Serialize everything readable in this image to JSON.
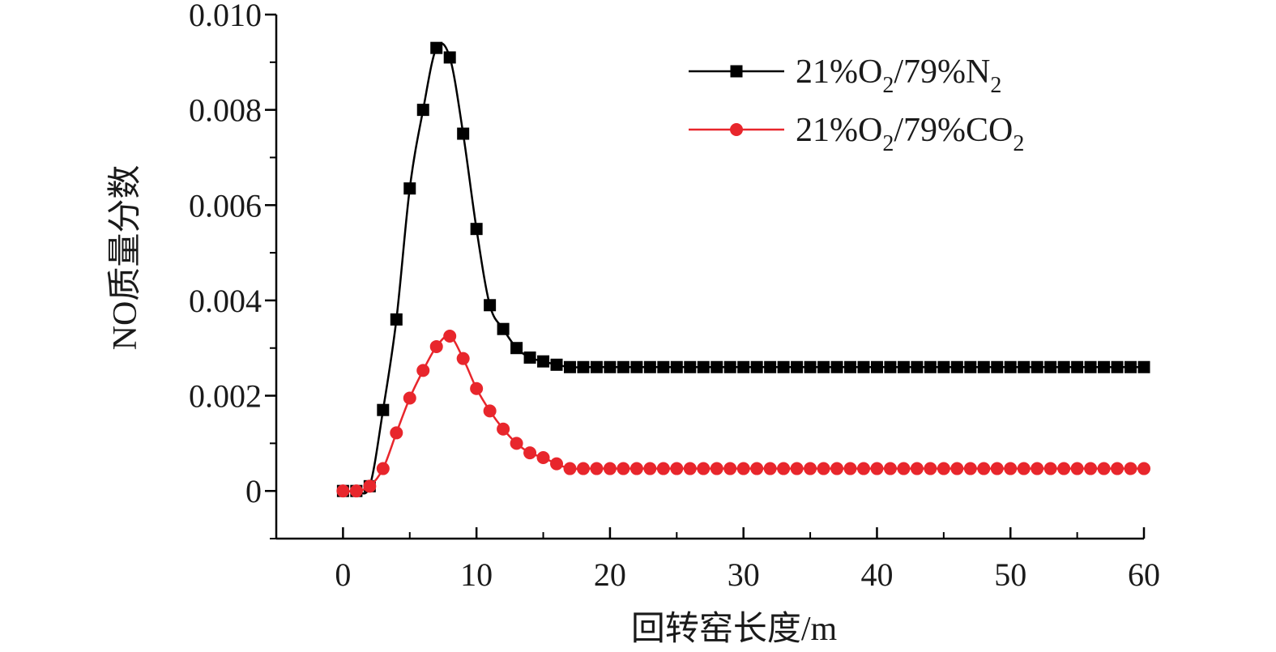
{
  "chart_data": {
    "type": "line",
    "title": "",
    "xlabel": "回转窑长度/m",
    "ylabel": "NO质量分数",
    "xlim": [
      -5,
      60
    ],
    "ylim": [
      -0.001,
      0.01
    ],
    "xticks": [
      0,
      10,
      20,
      30,
      40,
      50,
      60
    ],
    "xtick_labels": [
      "0",
      "10",
      "20",
      "30",
      "40",
      "50",
      "60"
    ],
    "yticks": [
      0,
      0.002,
      0.004,
      0.006,
      0.008,
      0.01
    ],
    "ytick_labels": [
      "0",
      "0.002",
      "0.004",
      "0.006",
      "0.008",
      "0.010"
    ],
    "grid": false,
    "legend_position": "top-right",
    "x": [
      0,
      1,
      2,
      3,
      4,
      5,
      6,
      7,
      8,
      9,
      10,
      11,
      12,
      13,
      14,
      15,
      16,
      17,
      18,
      19,
      20,
      21,
      22,
      23,
      24,
      25,
      26,
      27,
      28,
      29,
      30,
      31,
      32,
      33,
      34,
      35,
      36,
      37,
      38,
      39,
      40,
      41,
      42,
      43,
      44,
      45,
      46,
      47,
      48,
      49,
      50,
      51,
      52,
      53,
      54,
      55,
      56,
      57,
      58,
      59,
      60
    ],
    "series": [
      {
        "name_parts": [
          "21%O",
          "2",
          "/79%N",
          "2"
        ],
        "color": "#000000",
        "marker": "square",
        "values": [
          0,
          0,
          0.0001,
          0.0017,
          0.0036,
          0.00635,
          0.008,
          0.0093,
          0.0091,
          0.0075,
          0.0055,
          0.0039,
          0.0034,
          0.003,
          0.0028,
          0.00272,
          0.00265,
          0.0026,
          0.0026,
          0.0026,
          0.0026,
          0.0026,
          0.0026,
          0.0026,
          0.0026,
          0.0026,
          0.0026,
          0.0026,
          0.0026,
          0.0026,
          0.0026,
          0.0026,
          0.0026,
          0.0026,
          0.0026,
          0.0026,
          0.0026,
          0.0026,
          0.0026,
          0.0026,
          0.0026,
          0.0026,
          0.0026,
          0.0026,
          0.0026,
          0.0026,
          0.0026,
          0.0026,
          0.0026,
          0.0026,
          0.0026,
          0.0026,
          0.0026,
          0.0026,
          0.0026,
          0.0026,
          0.0026,
          0.0026,
          0.0026,
          0.0026,
          0.0026
        ]
      },
      {
        "name_parts": [
          "21%O",
          "2",
          "/79%CO",
          "2"
        ],
        "color": "#e8262c",
        "marker": "circle",
        "values": [
          0,
          0,
          0.0001,
          0.00047,
          0.00122,
          0.00195,
          0.00253,
          0.00303,
          0.00325,
          0.00278,
          0.00215,
          0.00168,
          0.0013,
          0.001,
          0.0008,
          0.0007,
          0.00057,
          0.00047,
          0.00047,
          0.00047,
          0.00047,
          0.00047,
          0.00047,
          0.00047,
          0.00047,
          0.00047,
          0.00047,
          0.00047,
          0.00047,
          0.00047,
          0.00047,
          0.00047,
          0.00047,
          0.00047,
          0.00047,
          0.00047,
          0.00047,
          0.00047,
          0.00047,
          0.00047,
          0.00047,
          0.00047,
          0.00047,
          0.00047,
          0.00047,
          0.00047,
          0.00047,
          0.00047,
          0.00047,
          0.00047,
          0.00047,
          0.00047,
          0.00047,
          0.00047,
          0.00047,
          0.00047,
          0.00047,
          0.00047,
          0.00047,
          0.00047,
          0.00047
        ]
      }
    ]
  }
}
